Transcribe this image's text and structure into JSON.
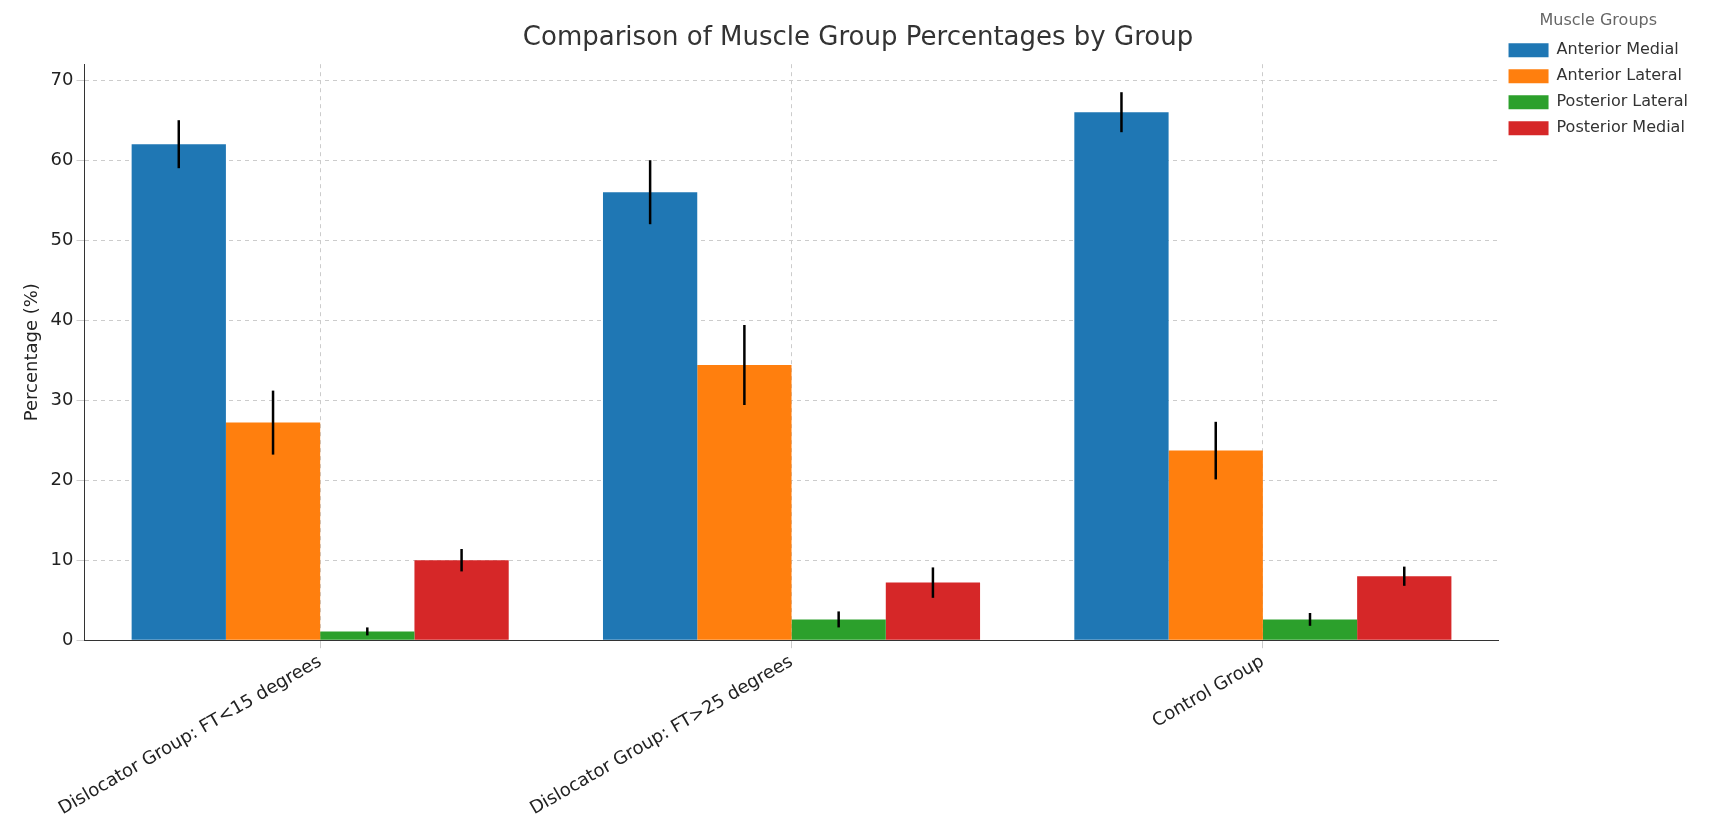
{
  "chart_data": {
    "type": "bar",
    "title": "Comparison of Muscle Group Percentages by Group",
    "ylabel": "Percentage (%)",
    "legend_title": "Muscle Groups",
    "categories": [
      "Dislocator Group: FT<15 degrees",
      "Dislocator Group: FT>25 degrees",
      "Control Group"
    ],
    "series": [
      {
        "name": "Anterior Medial",
        "color": "#1f77b4",
        "values": [
          62,
          56,
          66
        ],
        "errors": [
          3,
          4,
          2.5
        ]
      },
      {
        "name": "Anterior Lateral",
        "color": "#ff7f0e",
        "values": [
          27.2,
          34.4,
          23.7
        ],
        "errors": [
          4,
          5,
          3.6
        ]
      },
      {
        "name": "Posterior Lateral",
        "color": "#2ca02c",
        "values": [
          1.1,
          2.6,
          2.6
        ],
        "errors": [
          0.5,
          1,
          0.8
        ]
      },
      {
        "name": "Posterior Medial",
        "color": "#d62728",
        "values": [
          10,
          7.2,
          8
        ],
        "errors": [
          1.4,
          1.9,
          1.2
        ]
      }
    ],
    "ylim": [
      0,
      72
    ],
    "yticks": [
      0,
      10,
      20,
      30,
      40,
      50,
      60,
      70
    ],
    "grid": true,
    "legend": "top right"
  }
}
